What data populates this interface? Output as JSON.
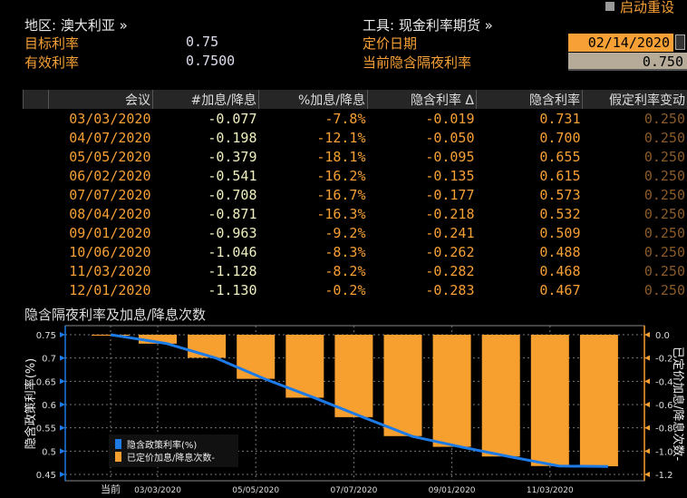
{
  "reset_label": "启动重设",
  "region": {
    "label": "地区: 澳大利亚 »"
  },
  "instrument": {
    "label": "工具: 现金利率期货 »"
  },
  "target_rate": {
    "label": "目标利率",
    "value": "0.75"
  },
  "effective_rate": {
    "label": "有效利率",
    "value": "0.7500"
  },
  "pricing_date": {
    "label": "定价日期",
    "value": "02/14/2020"
  },
  "current_implied_overnight": {
    "label": "当前隐含隔夜利率",
    "value": "0.750"
  },
  "table": {
    "headers": [
      "会议",
      "#加息/降息",
      "%加息/降息",
      "隐含利率 Δ",
      "隐含利率",
      "假定利率变动"
    ],
    "rows": [
      [
        "03/03/2020",
        "-0.077",
        "-7.8%",
        "-0.019",
        "0.731",
        "0.250"
      ],
      [
        "04/07/2020",
        "-0.198",
        "-12.1%",
        "-0.050",
        "0.700",
        "0.250"
      ],
      [
        "05/05/2020",
        "-0.379",
        "-18.1%",
        "-0.095",
        "0.655",
        "0.250"
      ],
      [
        "06/02/2020",
        "-0.541",
        "-16.2%",
        "-0.135",
        "0.615",
        "0.250"
      ],
      [
        "07/07/2020",
        "-0.708",
        "-16.7%",
        "-0.177",
        "0.573",
        "0.250"
      ],
      [
        "08/04/2020",
        "-0.871",
        "-16.3%",
        "-0.218",
        "0.532",
        "0.250"
      ],
      [
        "09/01/2020",
        "-0.963",
        "-9.2%",
        "-0.241",
        "0.509",
        "0.250"
      ],
      [
        "10/06/2020",
        "-1.046",
        "-8.3%",
        "-0.262",
        "0.488",
        "0.250"
      ],
      [
        "11/03/2020",
        "-1.128",
        "-8.2%",
        "-0.282",
        "0.468",
        "0.250"
      ],
      [
        "12/01/2020",
        "-1.130",
        "-0.2%",
        "-0.283",
        "0.467",
        "0.250"
      ]
    ]
  },
  "chart_data": {
    "type": "bar",
    "title": "隐含隔夜利率及加息/降息次数",
    "ylabel": "隐含政策利率(%)",
    "y2label": "已定价加息/降息次数-",
    "categories": [
      "当前",
      "03/03/2020",
      "04/07/2020",
      "05/05/2020",
      "06/02/2020",
      "07/07/2020",
      "08/04/2020",
      "09/01/2020",
      "10/06/2020",
      "11/03/2020",
      "12/01/2020"
    ],
    "xtick_labels": [
      "当前",
      "03/03/2020",
      "05/05/2020",
      "07/07/2020",
      "09/01/2020",
      "11/03/2020"
    ],
    "ylim": [
      0.45,
      0.75
    ],
    "yticks": [
      "0.75",
      "0.7",
      "0.65",
      "0.6",
      "0.55",
      "0.5",
      "0.45"
    ],
    "y2lim": [
      -1.2,
      0
    ],
    "y2ticks": [
      "0.0",
      "-0.2",
      "-0.4",
      "-0.6",
      "-0.8",
      "-1.0",
      "-1.2"
    ],
    "series": [
      {
        "name": "隐含政策利率(%)",
        "type": "line",
        "axis": "left",
        "color": "#1e7be6",
        "values": [
          0.75,
          0.731,
          0.7,
          0.655,
          0.615,
          0.573,
          0.532,
          0.509,
          0.488,
          0.468,
          0.467
        ]
      },
      {
        "name": "已定价加息/降息次数-",
        "type": "bar",
        "axis": "right",
        "color": "#f7a030",
        "values": [
          0,
          -0.077,
          -0.198,
          -0.379,
          -0.541,
          -0.708,
          -0.871,
          -0.963,
          -1.046,
          -1.128,
          -1.13
        ]
      }
    ],
    "legend_position": "bottom-left"
  }
}
